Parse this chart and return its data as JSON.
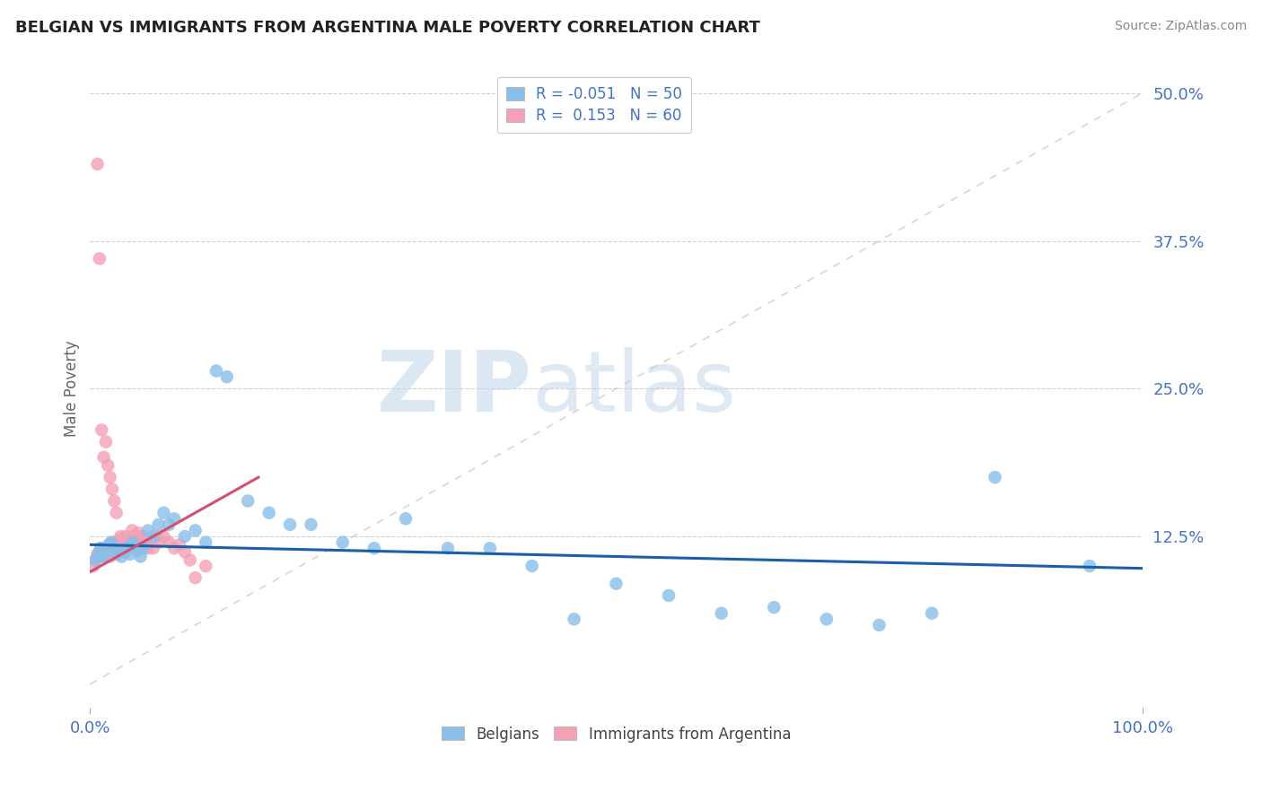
{
  "title": "BELGIAN VS IMMIGRANTS FROM ARGENTINA MALE POVERTY CORRELATION CHART",
  "source": "Source: ZipAtlas.com",
  "ylabel": "Male Poverty",
  "xlim": [
    0,
    1.0
  ],
  "ylim": [
    -0.02,
    0.52
  ],
  "y_ticks": [
    0.0,
    0.125,
    0.25,
    0.375,
    0.5
  ],
  "y_tick_labels": [
    "",
    "12.5%",
    "25.0%",
    "37.5%",
    "50.0%"
  ],
  "background_color": "#ffffff",
  "color_belgian": "#89bfe8",
  "color_argentina": "#f4a0b5",
  "color_trend_belgian": "#1a5fa8",
  "color_trend_argentina": "#d45070",
  "color_diagonal": "#cccccc",
  "legend_label1": "Belgians",
  "legend_label2": "Immigrants from Argentina",
  "belgian_x": [
    0.005,
    0.008,
    0.01,
    0.012,
    0.015,
    0.018,
    0.02,
    0.022,
    0.025,
    0.028,
    0.03,
    0.033,
    0.035,
    0.038,
    0.04,
    0.043,
    0.045,
    0.048,
    0.05,
    0.055,
    0.06,
    0.065,
    0.07,
    0.075,
    0.08,
    0.09,
    0.1,
    0.11,
    0.12,
    0.13,
    0.15,
    0.17,
    0.19,
    0.21,
    0.24,
    0.27,
    0.3,
    0.34,
    0.38,
    0.42,
    0.46,
    0.5,
    0.55,
    0.6,
    0.65,
    0.7,
    0.75,
    0.8,
    0.86,
    0.95
  ],
  "belgian_y": [
    0.105,
    0.11,
    0.115,
    0.108,
    0.112,
    0.118,
    0.12,
    0.115,
    0.11,
    0.113,
    0.108,
    0.112,
    0.115,
    0.11,
    0.12,
    0.118,
    0.113,
    0.108,
    0.115,
    0.13,
    0.125,
    0.135,
    0.145,
    0.135,
    0.14,
    0.125,
    0.13,
    0.12,
    0.265,
    0.26,
    0.155,
    0.145,
    0.135,
    0.135,
    0.12,
    0.115,
    0.14,
    0.115,
    0.115,
    0.1,
    0.055,
    0.085,
    0.075,
    0.06,
    0.065,
    0.055,
    0.05,
    0.06,
    0.175,
    0.1
  ],
  "argentina_x": [
    0.003,
    0.005,
    0.007,
    0.008,
    0.009,
    0.01,
    0.011,
    0.012,
    0.013,
    0.014,
    0.015,
    0.016,
    0.017,
    0.018,
    0.019,
    0.02,
    0.021,
    0.022,
    0.023,
    0.024,
    0.025,
    0.026,
    0.027,
    0.028,
    0.029,
    0.03,
    0.032,
    0.034,
    0.036,
    0.038,
    0.04,
    0.042,
    0.044,
    0.046,
    0.048,
    0.05,
    0.052,
    0.055,
    0.058,
    0.06,
    0.063,
    0.066,
    0.07,
    0.075,
    0.08,
    0.085,
    0.09,
    0.095,
    0.1,
    0.11,
    0.007,
    0.009,
    0.011,
    0.013,
    0.015,
    0.017,
    0.019,
    0.021,
    0.023,
    0.025
  ],
  "argentina_y": [
    0.1,
    0.105,
    0.11,
    0.108,
    0.112,
    0.115,
    0.11,
    0.113,
    0.108,
    0.115,
    0.11,
    0.113,
    0.115,
    0.112,
    0.108,
    0.118,
    0.115,
    0.12,
    0.113,
    0.11,
    0.118,
    0.12,
    0.115,
    0.122,
    0.125,
    0.12,
    0.118,
    0.125,
    0.115,
    0.12,
    0.13,
    0.125,
    0.12,
    0.128,
    0.122,
    0.125,
    0.12,
    0.115,
    0.12,
    0.115,
    0.125,
    0.12,
    0.125,
    0.12,
    0.115,
    0.118,
    0.112,
    0.105,
    0.09,
    0.1,
    0.44,
    0.36,
    0.215,
    0.192,
    0.205,
    0.185,
    0.175,
    0.165,
    0.155,
    0.145
  ],
  "trend_belgian_x0": 0.0,
  "trend_belgian_x1": 1.0,
  "trend_belgian_y0": 0.118,
  "trend_belgian_y1": 0.098,
  "trend_arg_x0": 0.0,
  "trend_arg_x1": 0.16,
  "trend_arg_y0": 0.095,
  "trend_arg_y1": 0.175
}
